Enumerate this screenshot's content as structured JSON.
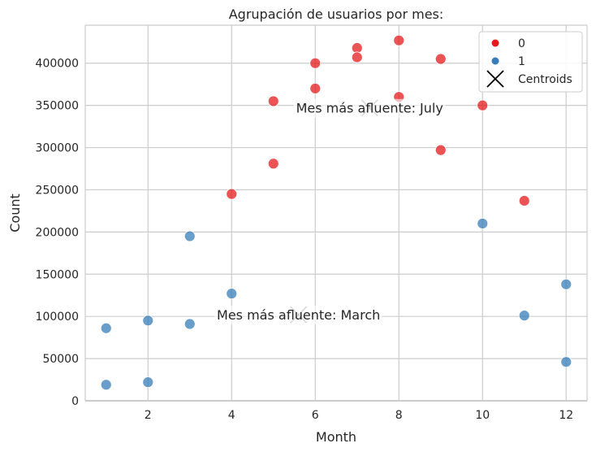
{
  "chart_data": {
    "type": "scatter",
    "title": "Agrupación de usuarios por mes:",
    "xlabel": "Month",
    "ylabel": "Count",
    "xlim": [
      0.5,
      12.5
    ],
    "ylim": [
      0,
      445000
    ],
    "x_ticks": [
      2,
      4,
      6,
      8,
      10,
      12
    ],
    "y_ticks": [
      0,
      50000,
      100000,
      150000,
      200000,
      250000,
      300000,
      350000,
      400000
    ],
    "grid": true,
    "legend_position": "top-right",
    "series": [
      {
        "name": "0",
        "color": "#e41a1c",
        "points": [
          [
            4,
            245000
          ],
          [
            5,
            355000
          ],
          [
            5,
            281000
          ],
          [
            6,
            400000
          ],
          [
            6,
            370000
          ],
          [
            7,
            418000
          ],
          [
            7,
            407000
          ],
          [
            8,
            427000
          ],
          [
            8,
            360000
          ],
          [
            9,
            405000
          ],
          [
            9,
            297000
          ],
          [
            10,
            350000
          ],
          [
            11,
            237000
          ]
        ]
      },
      {
        "name": "1",
        "color": "#377eb8",
        "points": [
          [
            1,
            86000
          ],
          [
            1,
            19000
          ],
          [
            2,
            95000
          ],
          [
            2,
            22000
          ],
          [
            3,
            195000
          ],
          [
            3,
            91000
          ],
          [
            4,
            127000
          ],
          [
            10,
            210000
          ],
          [
            11,
            101000
          ],
          [
            12,
            138000
          ],
          [
            12,
            46000
          ]
        ]
      }
    ],
    "centroids": {
      "name": "Centroids",
      "points": [
        [
          7.3,
          347000
        ],
        [
          5.6,
          102000
        ]
      ]
    },
    "annotations": [
      {
        "text": "Mes más afluente: July",
        "x": 7.3,
        "y": 347000
      },
      {
        "text": "Mes más afluente: March",
        "x": 5.6,
        "y": 102000
      }
    ]
  }
}
